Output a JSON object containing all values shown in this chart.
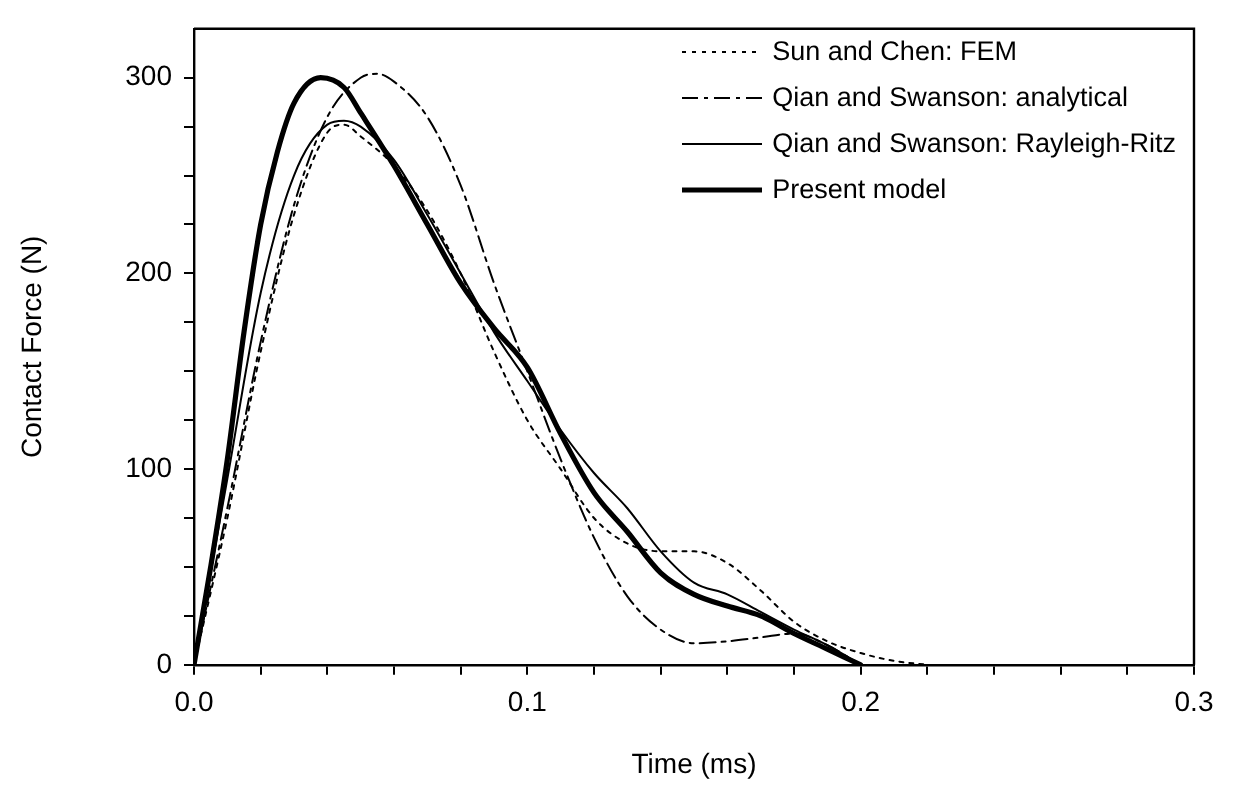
{
  "chart_data": {
    "type": "line",
    "xlabel": "Time (ms)",
    "ylabel": "Contact Force (N)",
    "xlim": [
      0,
      0.3
    ],
    "xticks": [
      {
        "value": 0,
        "label": "0.0"
      },
      {
        "value": 0.02,
        "label": null
      },
      {
        "value": 0.04,
        "label": null
      },
      {
        "value": 0.06,
        "label": null
      },
      {
        "value": 0.08,
        "label": null
      },
      {
        "value": 0.1,
        "label": "0.1"
      },
      {
        "value": 0.12,
        "label": null
      },
      {
        "value": 0.14,
        "label": null
      },
      {
        "value": 0.16,
        "label": null
      },
      {
        "value": 0.18,
        "label": null
      },
      {
        "value": 0.2,
        "label": "0.2"
      },
      {
        "value": 0.22,
        "label": null
      },
      {
        "value": 0.24,
        "label": null
      },
      {
        "value": 0.26,
        "label": null
      },
      {
        "value": 0.28,
        "label": null
      },
      {
        "value": 0.3,
        "label": "0.3"
      }
    ],
    "ylim": [
      0,
      325
    ],
    "yticks": [
      0,
      {
        "value": 25,
        "label": null
      },
      {
        "value": 50,
        "label": null
      },
      {
        "value": 75,
        "label": null
      },
      100,
      {
        "value": 125,
        "label": null
      },
      {
        "value": 150,
        "label": null
      },
      {
        "value": 175,
        "label": null
      },
      200,
      {
        "value": 225,
        "label": null
      },
      {
        "value": 250,
        "label": null
      },
      {
        "value": 275,
        "label": null
      },
      300
    ],
    "grid": false,
    "legend": "top right",
    "marker": "none",
    "series": [
      {
        "name": "Sun and Chen: FEM",
        "color": "#000000",
        "line_style": "dotted",
        "x": [
          0,
          0.01,
          0.02,
          0.03,
          0.04,
          0.045,
          0.05,
          0.06,
          0.07,
          0.08,
          0.09,
          0.1,
          0.11,
          0.12,
          0.13,
          0.14,
          0.15,
          0.16,
          0.17,
          0.18,
          0.19,
          0.2,
          0.21,
          0.22
        ],
        "values": [
          0,
          75,
          160,
          230,
          272,
          276,
          270,
          255,
          232,
          200,
          160,
          125,
          100,
          75,
          62,
          58,
          58,
          52,
          38,
          22,
          12,
          6,
          2,
          0
        ]
      },
      {
        "name": "Qian and Swanson: analytical",
        "color": "#000000",
        "line_style": "dashdot",
        "x": [
          0,
          0.01,
          0.02,
          0.03,
          0.04,
          0.05,
          0.055,
          0.06,
          0.07,
          0.08,
          0.09,
          0.1,
          0.11,
          0.12,
          0.13,
          0.14,
          0.15,
          0.16,
          0.17,
          0.18,
          0.19,
          0.2
        ],
        "values": [
          0,
          80,
          165,
          235,
          280,
          300,
          302,
          298,
          280,
          245,
          195,
          150,
          105,
          65,
          35,
          18,
          11,
          12,
          14,
          16,
          10,
          0
        ]
      },
      {
        "name": "Qian and Swanson: Rayleigh-Ritz",
        "color": "#000000",
        "line_style": "solid",
        "x": [
          0,
          0.01,
          0.02,
          0.03,
          0.04,
          0.045,
          0.05,
          0.06,
          0.07,
          0.08,
          0.09,
          0.1,
          0.11,
          0.12,
          0.13,
          0.14,
          0.15,
          0.16,
          0.17,
          0.18,
          0.19,
          0.2
        ],
        "values": [
          0,
          95,
          190,
          250,
          276,
          278,
          275,
          258,
          230,
          200,
          170,
          145,
          120,
          98,
          80,
          58,
          42,
          36,
          27,
          18,
          10,
          0
        ]
      },
      {
        "name": "Present model",
        "color": "#000000",
        "line_style": "solid",
        "x": [
          0,
          0.005,
          0.01,
          0.015,
          0.02,
          0.025,
          0.03,
          0.038,
          0.045,
          0.05,
          0.06,
          0.07,
          0.08,
          0.09,
          0.1,
          0.11,
          0.12,
          0.13,
          0.14,
          0.15,
          0.16,
          0.17,
          0.18,
          0.19,
          0.2
        ],
        "values": [
          0,
          50,
          105,
          170,
          225,
          262,
          287,
          300,
          295,
          282,
          255,
          225,
          195,
          172,
          152,
          118,
          88,
          68,
          47,
          36,
          30,
          25,
          16,
          8,
          0
        ]
      }
    ]
  }
}
